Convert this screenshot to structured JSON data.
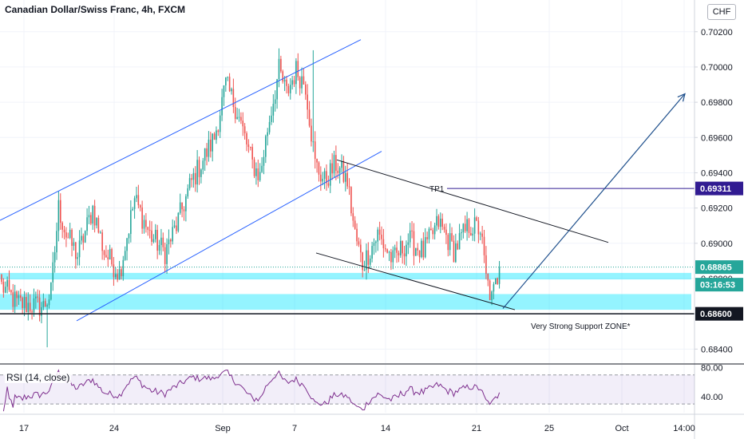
{
  "header": {
    "title": "Canadian Dollar/Swiss Franc, 4h, FXCM",
    "currency": "CHF"
  },
  "chart_data": {
    "type": "candlestick",
    "symbol": "CADCHF",
    "timeframe": "4h",
    "source": "FXCM",
    "ylim": [
      0.6832,
      0.7038
    ],
    "y_ticks": [
      "0.68400",
      "0.68600",
      "0.68800",
      "0.69000",
      "0.69200",
      "0.69400",
      "0.69600",
      "0.69800",
      "0.70000",
      "0.70200"
    ],
    "x_ticks": [
      "17",
      "24",
      "Sep",
      "7",
      "14",
      "21",
      "25",
      "Oct",
      "14:00"
    ],
    "price_labels": {
      "current": "0.68865",
      "countdown": "03:16:53",
      "tp1": "0.69311",
      "support": "0.68600"
    },
    "price_levels": {
      "current": 0.68865,
      "tp1": 0.69311,
      "support": 0.686
    },
    "annotations": {
      "tp1_label": "TP1",
      "support_label": "Very Strong Support ZONE*"
    },
    "colors": {
      "up": "#26a69a",
      "down": "#ef5350",
      "channel": "#2962ff",
      "wedge": "#131722",
      "zone": "#00e5ff",
      "tp1": "#311b92",
      "support": "#131722",
      "arrow": "#1e4f8c",
      "rsi": "#7e2f8e"
    },
    "rsi": {
      "title": "RSI (14, close)",
      "y_ticks": [
        "80.00",
        "40.00"
      ],
      "levels": [
        70,
        30
      ],
      "ylim": [
        18,
        84
      ]
    }
  }
}
